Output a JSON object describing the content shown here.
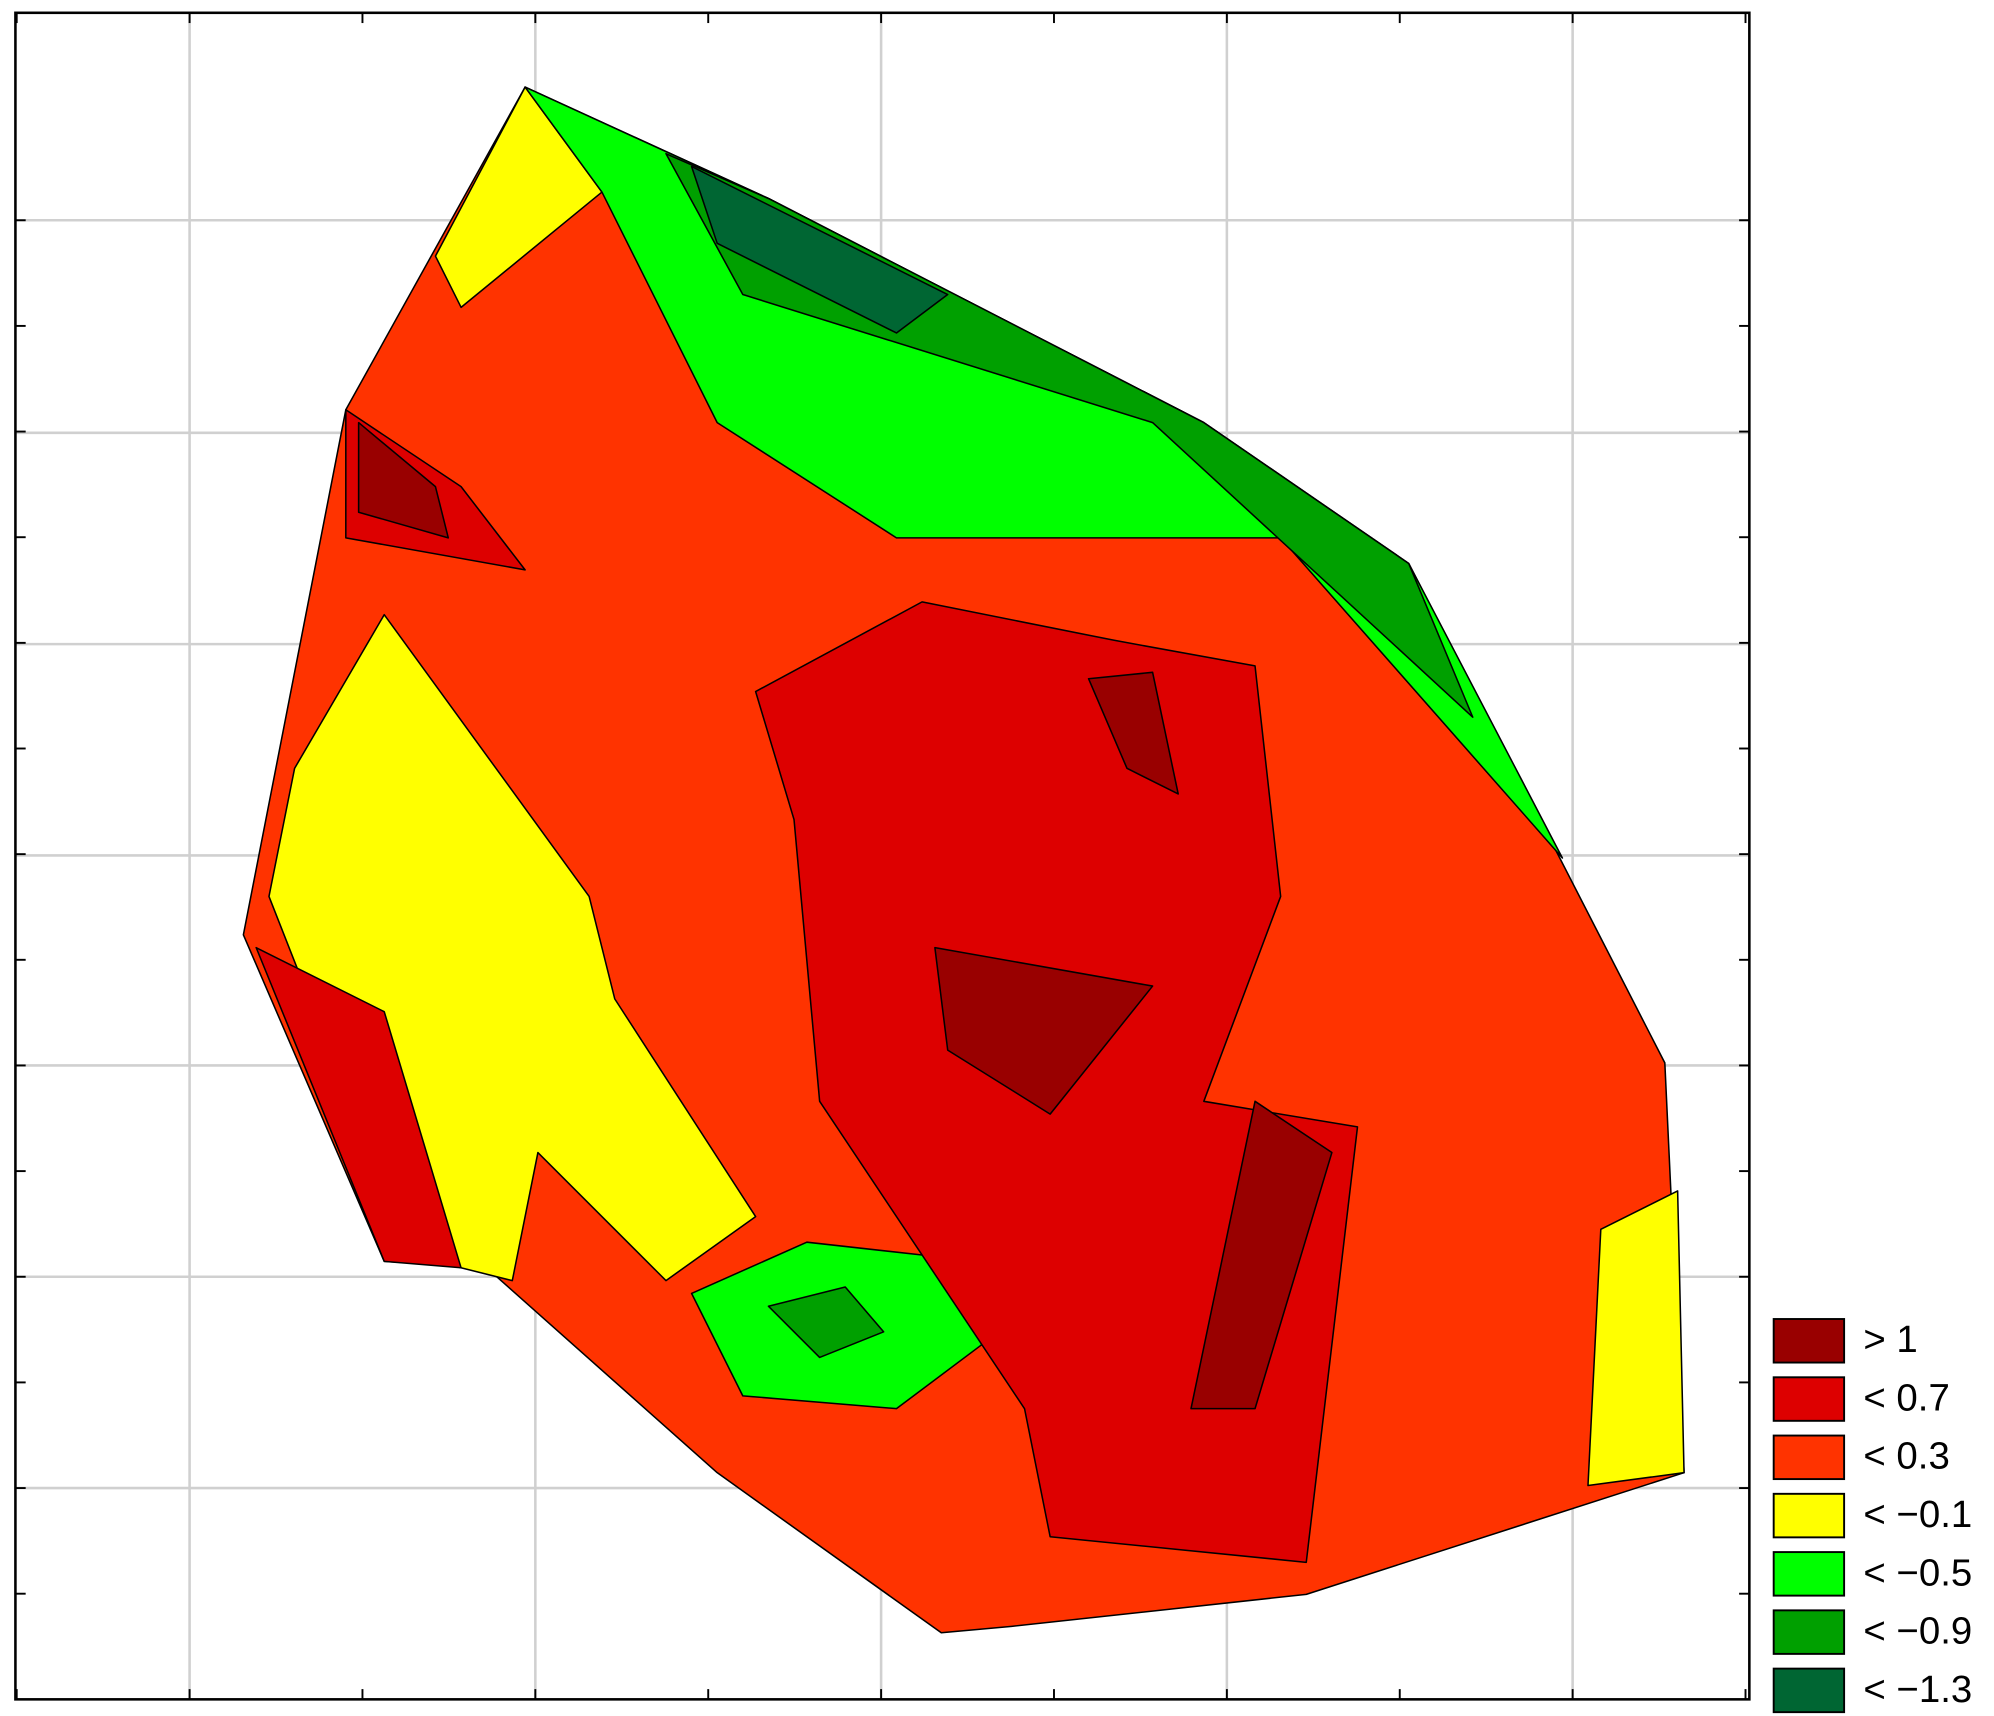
{
  "chart_data": {
    "type": "contour",
    "levels": [
      {
        "name": "> 1",
        "color": "#990000"
      },
      {
        "name": "< 0.7",
        "color": "#dd0000"
      },
      {
        "name": "< 0.3",
        "color": "#ff3300"
      },
      {
        "name": "< −0.1",
        "color": "#ffff00"
      },
      {
        "name": "< −0.5",
        "color": "#00ff00"
      },
      {
        "name": "< −0.9",
        "color": "#00a000"
      },
      {
        "name": "< −1.3",
        "color": "#006633"
      }
    ],
    "grid": true
  }
}
